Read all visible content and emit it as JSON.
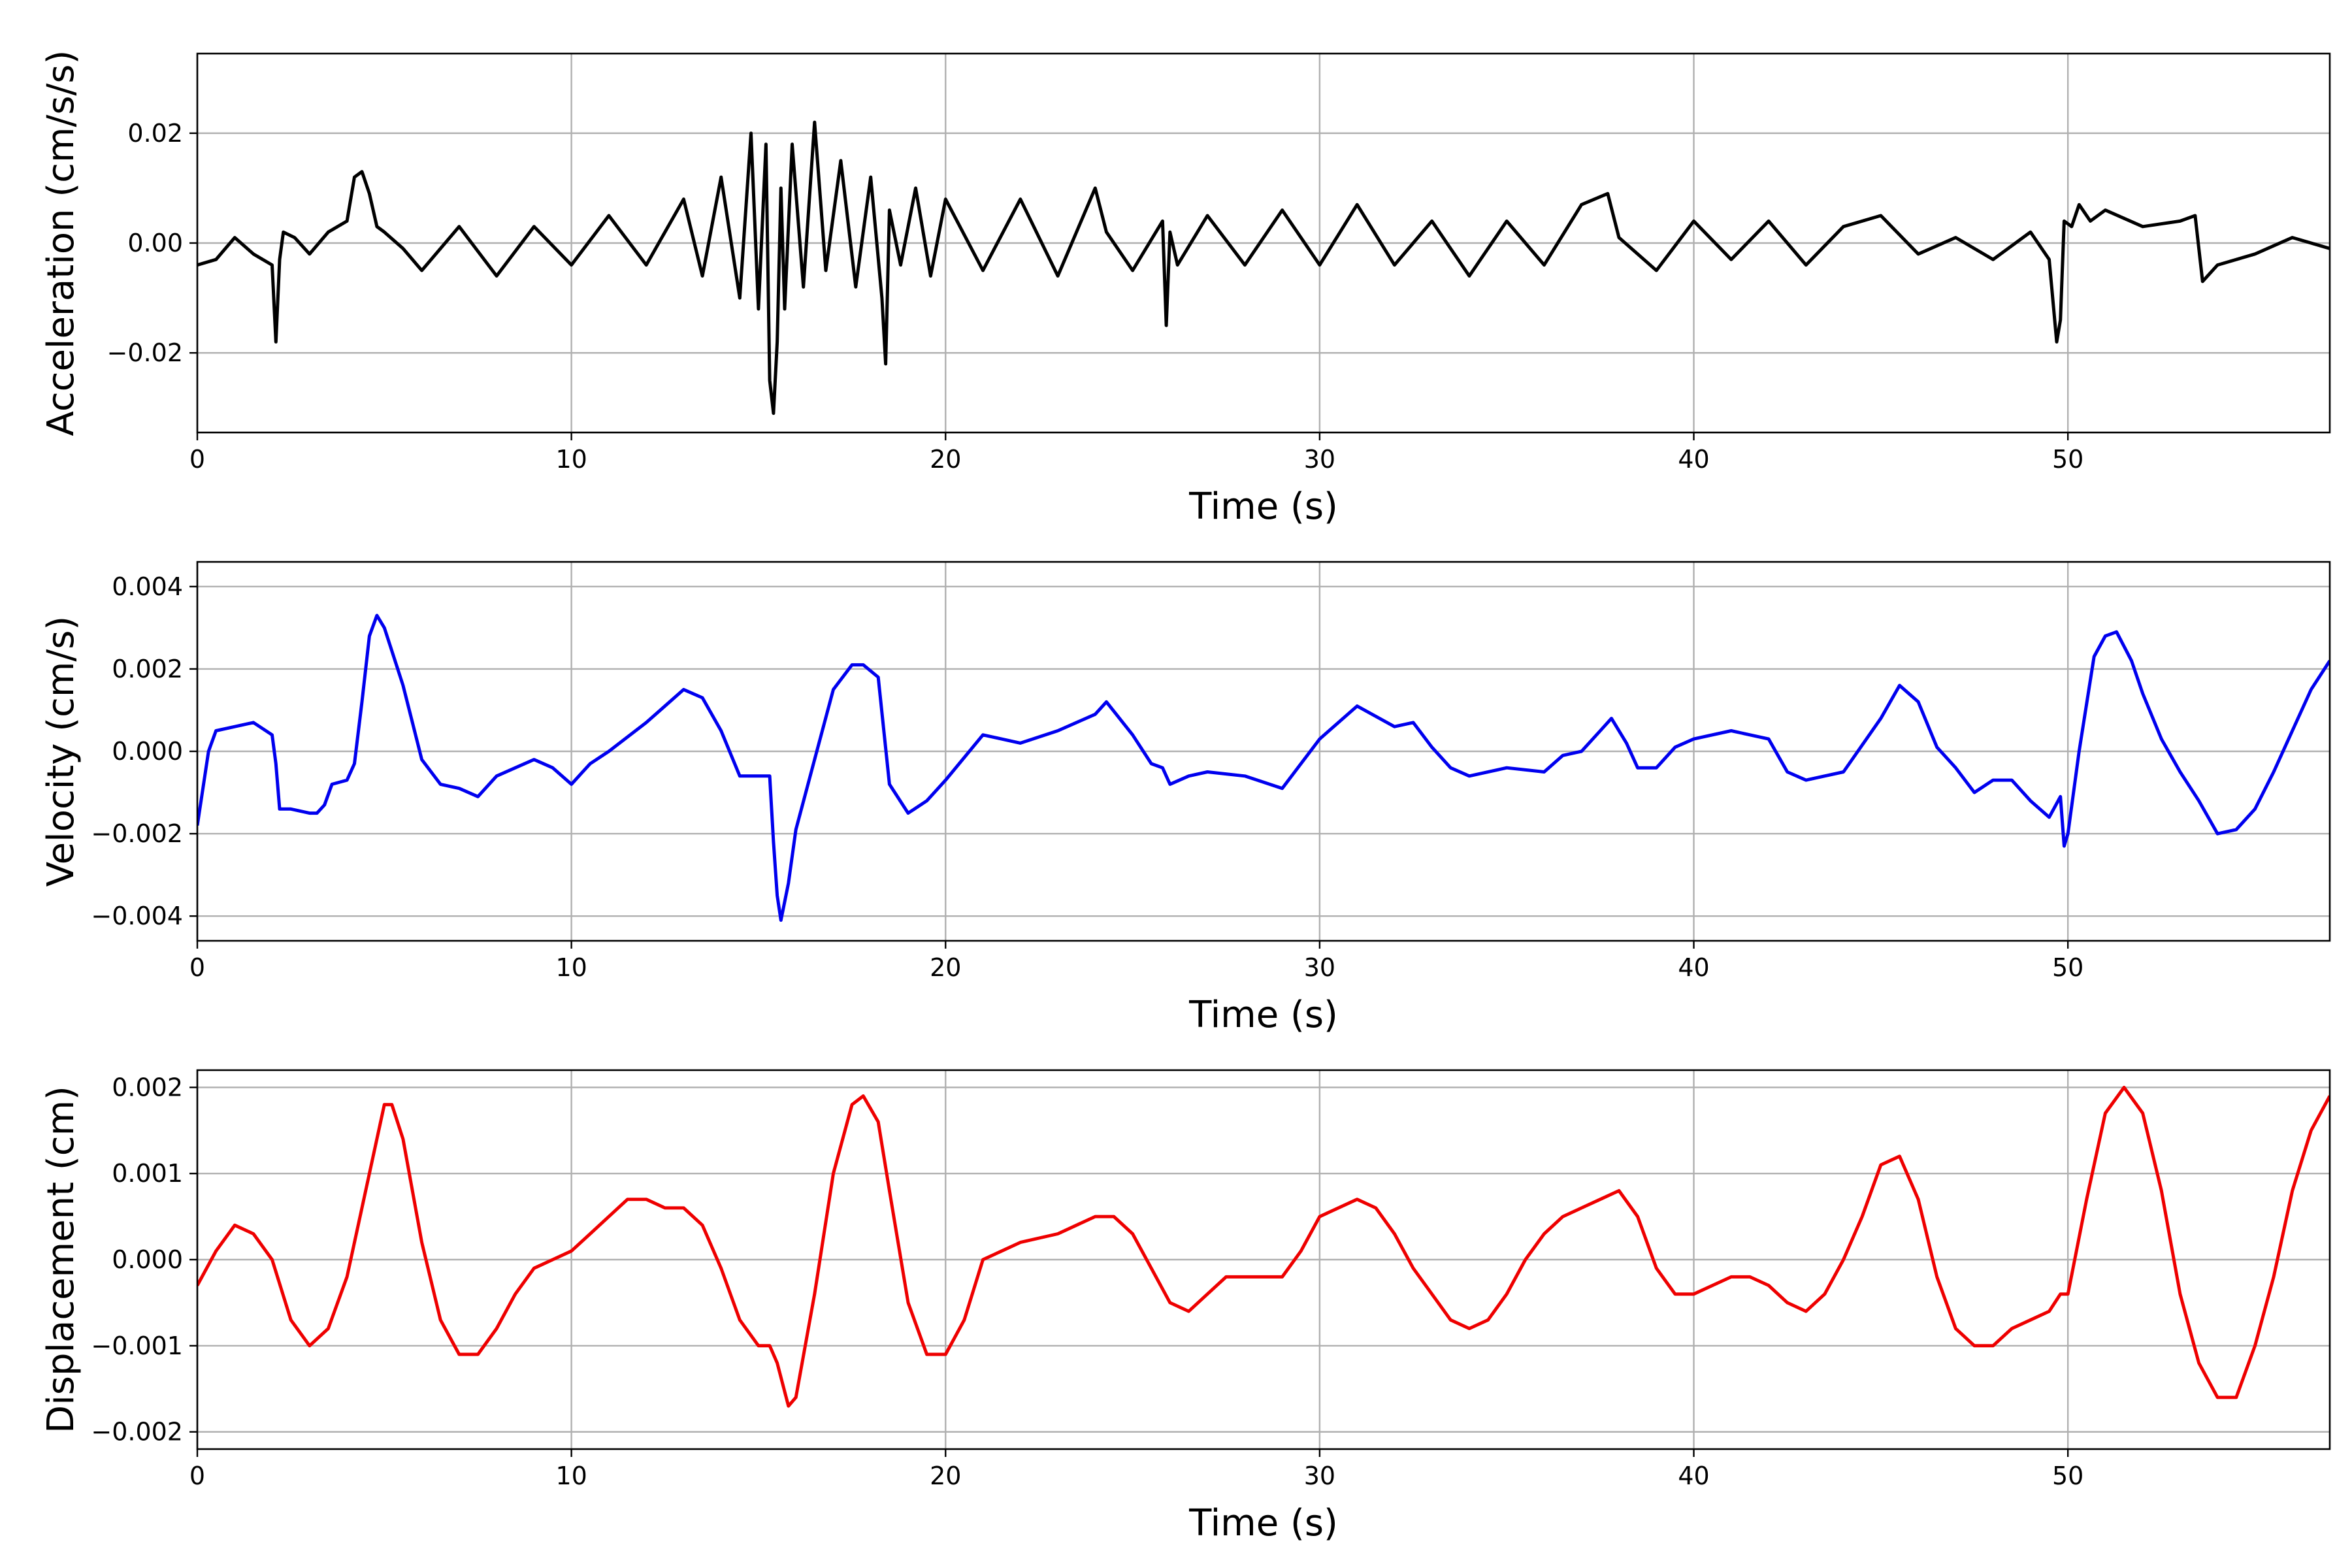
{
  "chart_data": [
    {
      "type": "line",
      "xlabel": "Time (s)",
      "ylabel": "Acceleration (cm/s/s)",
      "xlim": [
        0,
        57
      ],
      "ylim": [
        -0.0345,
        0.0345
      ],
      "xticks": [
        0,
        10,
        20,
        30,
        40,
        50
      ],
      "xtick_labels": [
        "0",
        "10",
        "20",
        "30",
        "40",
        "50"
      ],
      "yticks": [
        -0.02,
        0.0,
        0.02
      ],
      "ytick_labels": [
        "−0.02",
        "0.00",
        "0.02"
      ],
      "grid": true,
      "color": "#000000",
      "series": [
        {
          "x": [
            0,
            0.5,
            1.0,
            1.5,
            2.0,
            2.1,
            2.2,
            2.3,
            2.6,
            3.0,
            3.5,
            4.0,
            4.2,
            4.4,
            4.6,
            4.8,
            5.0,
            5.5,
            6.0,
            7.0,
            8.0,
            9.0,
            10.0,
            11.0,
            12.0,
            13.0,
            13.5,
            14.0,
            14.5,
            14.8,
            15.0,
            15.2,
            15.3,
            15.4,
            15.5,
            15.6,
            15.7,
            15.9,
            16.2,
            16.5,
            16.8,
            17.2,
            17.6,
            18.0,
            18.3,
            18.4,
            18.5,
            18.8,
            19.2,
            19.6,
            20.0,
            21.0,
            22.0,
            23.0,
            24.0,
            24.3,
            25.0,
            25.8,
            25.9,
            26.0,
            26.2,
            27.0,
            28.0,
            29.0,
            30.0,
            31.0,
            32.0,
            33.0,
            34.0,
            35.0,
            36.0,
            37.0,
            37.7,
            38.0,
            39.0,
            40.0,
            41.0,
            42.0,
            43.0,
            44.0,
            45.0,
            46.0,
            47.0,
            48.0,
            49.0,
            49.5,
            49.7,
            49.8,
            49.9,
            50.1,
            50.3,
            50.6,
            51.0,
            52.0,
            53.0,
            53.4,
            53.6,
            54.0,
            55.0,
            56.0,
            57.0
          ],
          "y": [
            -0.004,
            -0.003,
            0.001,
            -0.002,
            -0.004,
            -0.018,
            -0.003,
            0.002,
            0.001,
            -0.002,
            0.002,
            0.004,
            0.012,
            0.013,
            0.009,
            0.003,
            0.002,
            -0.001,
            -0.005,
            0.003,
            -0.006,
            0.003,
            -0.004,
            0.005,
            -0.004,
            0.008,
            -0.006,
            0.012,
            -0.01,
            0.02,
            -0.012,
            0.018,
            -0.025,
            -0.031,
            -0.018,
            0.01,
            -0.012,
            0.018,
            -0.008,
            0.022,
            -0.005,
            0.015,
            -0.008,
            0.012,
            -0.01,
            -0.022,
            0.006,
            -0.004,
            0.01,
            -0.006,
            0.008,
            -0.005,
            0.008,
            -0.006,
            0.01,
            0.002,
            -0.005,
            0.004,
            -0.015,
            0.002,
            -0.004,
            0.005,
            -0.004,
            0.006,
            -0.004,
            0.007,
            -0.004,
            0.004,
            -0.006,
            0.004,
            -0.004,
            0.007,
            0.009,
            0.001,
            -0.005,
            0.004,
            -0.003,
            0.004,
            -0.004,
            0.003,
            0.005,
            -0.002,
            0.001,
            -0.003,
            0.002,
            -0.003,
            -0.018,
            -0.014,
            0.004,
            0.003,
            0.007,
            0.004,
            0.006,
            0.003,
            0.004,
            0.005,
            -0.007,
            -0.004,
            -0.002,
            0.001,
            -0.001
          ]
        }
      ]
    },
    {
      "type": "line",
      "xlabel": "Time (s)",
      "ylabel": "Velocity (cm/s)",
      "xlim": [
        0,
        57
      ],
      "ylim": [
        -0.0046,
        0.0046
      ],
      "xticks": [
        0,
        10,
        20,
        30,
        40,
        50
      ],
      "xtick_labels": [
        "0",
        "10",
        "20",
        "30",
        "40",
        "50"
      ],
      "yticks": [
        -0.004,
        -0.002,
        0.0,
        0.002,
        0.004
      ],
      "ytick_labels": [
        "−0.004",
        "−0.002",
        "0.000",
        "0.002",
        "0.004"
      ],
      "grid": true,
      "color": "#0000ee",
      "series": [
        {
          "x": [
            0,
            0.3,
            0.5,
            1.0,
            1.5,
            2.0,
            2.1,
            2.2,
            2.5,
            3.0,
            3.2,
            3.4,
            3.6,
            4.0,
            4.2,
            4.4,
            4.6,
            4.8,
            5.0,
            5.5,
            6.0,
            6.5,
            7.0,
            7.5,
            8.0,
            8.5,
            9.0,
            9.5,
            10.0,
            10.5,
            11.0,
            12.0,
            13.0,
            13.5,
            14.0,
            14.5,
            15.0,
            15.3,
            15.4,
            15.5,
            15.6,
            15.8,
            16.0,
            16.5,
            17.0,
            17.5,
            17.8,
            18.2,
            18.5,
            19.0,
            19.5,
            20.0,
            21.0,
            22.0,
            23.0,
            24.0,
            24.3,
            25.0,
            25.5,
            25.8,
            26.0,
            26.5,
            27.0,
            28.0,
            29.0,
            30.0,
            31.0,
            32.0,
            32.5,
            33.0,
            33.5,
            34.0,
            35.0,
            36.0,
            36.5,
            37.0,
            37.5,
            37.8,
            38.2,
            38.5,
            39.0,
            39.5,
            40.0,
            41.0,
            42.0,
            42.5,
            43.0,
            44.0,
            45.0,
            45.5,
            46.0,
            46.5,
            47.0,
            47.5,
            48.0,
            48.5,
            49.0,
            49.5,
            49.8,
            49.9,
            50.0,
            50.3,
            50.7,
            51.0,
            51.3,
            51.7,
            52.0,
            52.5,
            53.0,
            53.5,
            54.0,
            54.5,
            55.0,
            55.5,
            56.0,
            56.5,
            57.0
          ],
          "y": [
            -0.0018,
            0.0,
            0.0005,
            0.0006,
            0.0007,
            0.0004,
            -0.0003,
            -0.0014,
            -0.0014,
            -0.0015,
            -0.0015,
            -0.0013,
            -0.0008,
            -0.0007,
            -0.0003,
            0.0012,
            0.0028,
            0.0033,
            0.003,
            0.0016,
            -0.0002,
            -0.0008,
            -0.0009,
            -0.0011,
            -0.0006,
            -0.0004,
            -0.0002,
            -0.0004,
            -0.0008,
            -0.0003,
            0.0,
            0.0007,
            0.0015,
            0.0013,
            0.0005,
            -0.0006,
            -0.0006,
            -0.0006,
            -0.0022,
            -0.0035,
            -0.0041,
            -0.0032,
            -0.0019,
            -0.0002,
            0.0015,
            0.0021,
            0.0021,
            0.0018,
            -0.0008,
            -0.0015,
            -0.0012,
            -0.0007,
            0.0004,
            0.0002,
            0.0005,
            0.0009,
            0.0012,
            0.0004,
            -0.0003,
            -0.0004,
            -0.0008,
            -0.0006,
            -0.0005,
            -0.0006,
            -0.0009,
            0.0003,
            0.0011,
            0.0006,
            0.0007,
            0.0001,
            -0.0004,
            -0.0006,
            -0.0004,
            -0.0005,
            -0.0001,
            0.0,
            0.0005,
            0.0008,
            0.0002,
            -0.0004,
            -0.0004,
            0.0001,
            0.0003,
            0.0005,
            0.0003,
            -0.0005,
            -0.0007,
            -0.0005,
            0.0008,
            0.0016,
            0.0012,
            0.0001,
            -0.0004,
            -0.001,
            -0.0007,
            -0.0007,
            -0.0012,
            -0.0016,
            -0.0011,
            -0.0023,
            -0.002,
            0.0,
            0.0023,
            0.0028,
            0.0029,
            0.0022,
            0.0014,
            0.0003,
            -0.0005,
            -0.0012,
            -0.002,
            -0.0019,
            -0.0014,
            -0.0005,
            0.0005,
            0.0015,
            0.0022
          ]
        }
      ]
    },
    {
      "type": "line",
      "xlabel": "Time (s)",
      "ylabel": "Displacement (cm)",
      "xlim": [
        0,
        57
      ],
      "ylim": [
        -0.0022,
        0.0022
      ],
      "xticks": [
        0,
        10,
        20,
        30,
        40,
        50
      ],
      "xtick_labels": [
        "0",
        "10",
        "20",
        "30",
        "40",
        "50"
      ],
      "yticks": [
        -0.002,
        -0.001,
        0.0,
        0.001,
        0.002
      ],
      "ytick_labels": [
        "−0.002",
        "−0.001",
        "0.000",
        "0.001",
        "0.002"
      ],
      "grid": true,
      "color": "#ee0000",
      "series": [
        {
          "x": [
            0,
            0.5,
            1.0,
            1.5,
            2.0,
            2.5,
            3.0,
            3.5,
            4.0,
            4.5,
            5.0,
            5.2,
            5.5,
            6.0,
            6.5,
            7.0,
            7.5,
            8.0,
            8.5,
            9.0,
            9.5,
            10.0,
            10.5,
            11.0,
            11.5,
            12.0,
            12.5,
            13.0,
            13.5,
            14.0,
            14.5,
            15.0,
            15.3,
            15.5,
            15.8,
            16.0,
            16.5,
            17.0,
            17.5,
            17.8,
            18.2,
            18.5,
            19.0,
            19.5,
            20.0,
            20.5,
            21.0,
            21.5,
            22.0,
            23.0,
            24.0,
            24.5,
            25.0,
            25.5,
            26.0,
            26.5,
            27.0,
            27.5,
            28.0,
            28.5,
            29.0,
            29.5,
            30.0,
            31.0,
            31.5,
            32.0,
            32.5,
            33.0,
            33.5,
            34.0,
            34.5,
            35.0,
            35.5,
            36.0,
            36.5,
            37.0,
            37.5,
            38.0,
            38.5,
            39.0,
            39.5,
            40.0,
            40.5,
            41.0,
            41.5,
            42.0,
            42.5,
            43.0,
            43.5,
            44.0,
            44.5,
            45.0,
            45.5,
            46.0,
            46.5,
            47.0,
            47.5,
            48.0,
            48.5,
            49.0,
            49.5,
            49.8,
            50.0,
            50.5,
            51.0,
            51.5,
            52.0,
            52.5,
            53.0,
            53.5,
            54.0,
            54.5,
            55.0,
            55.5,
            56.0,
            56.5,
            57.0
          ],
          "y": [
            -0.0003,
            0.0001,
            0.0004,
            0.0003,
            0.0,
            -0.0007,
            -0.001,
            -0.0008,
            -0.0002,
            0.0008,
            0.0018,
            0.0018,
            0.0014,
            0.0002,
            -0.0007,
            -0.0011,
            -0.0011,
            -0.0008,
            -0.0004,
            -0.0001,
            0.0,
            0.0001,
            0.0003,
            0.0005,
            0.0007,
            0.0007,
            0.0006,
            0.0006,
            0.0004,
            -0.0001,
            -0.0007,
            -0.001,
            -0.001,
            -0.0012,
            -0.0017,
            -0.0016,
            -0.0004,
            0.001,
            0.0018,
            0.0019,
            0.0016,
            0.0008,
            -0.0005,
            -0.0011,
            -0.0011,
            -0.0007,
            0.0,
            0.0001,
            0.0002,
            0.0003,
            0.0005,
            0.0005,
            0.0003,
            -0.0001,
            -0.0005,
            -0.0006,
            -0.0004,
            -0.0002,
            -0.0002,
            -0.0002,
            -0.0002,
            0.0001,
            0.0005,
            0.0007,
            0.0006,
            0.0003,
            -0.0001,
            -0.0004,
            -0.0007,
            -0.0008,
            -0.0007,
            -0.0004,
            0.0,
            0.0003,
            0.0005,
            0.0006,
            0.0007,
            0.0008,
            0.0005,
            -0.0001,
            -0.0004,
            -0.0004,
            -0.0003,
            -0.0002,
            -0.0002,
            -0.0003,
            -0.0005,
            -0.0006,
            -0.0004,
            0.0,
            0.0005,
            0.0011,
            0.0012,
            0.0007,
            -0.0002,
            -0.0008,
            -0.001,
            -0.001,
            -0.0008,
            -0.0007,
            -0.0006,
            -0.0004,
            -0.0004,
            0.0007,
            0.0017,
            0.002,
            0.0017,
            0.0008,
            -0.0004,
            -0.0012,
            -0.0016,
            -0.0016,
            -0.001,
            -0.0002,
            0.0008,
            0.0015,
            0.0019
          ]
        }
      ]
    }
  ]
}
